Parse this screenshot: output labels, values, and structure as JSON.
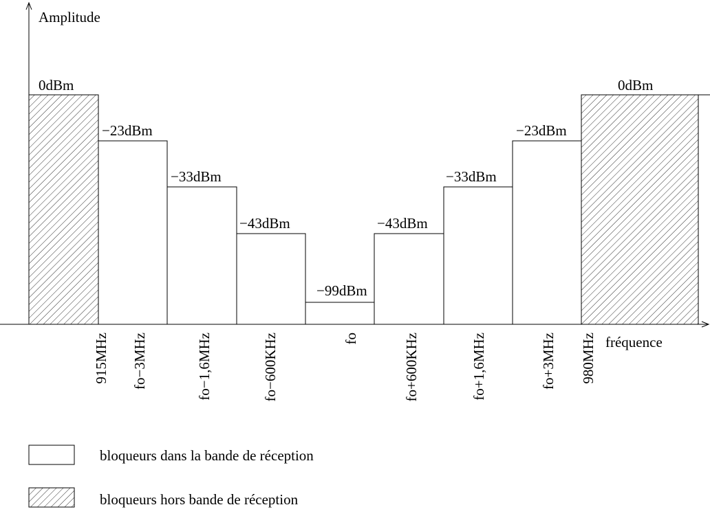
{
  "axes": {
    "y_label": "Amplitude",
    "x_label": "fréquence"
  },
  "levels": [
    "0dBm",
    "−23dBm",
    "−33dBm",
    "−43dBm",
    "−99dBm",
    "−43dBm",
    "−33dBm",
    "−23dBm",
    "0dBm"
  ],
  "frequencies": [
    "915MHz",
    "fo−3MHz",
    "fo−1,6MHz",
    "fo−600KHz",
    "fo",
    "fo+600KHz",
    "fo+1,6MHz",
    "fo+3MHz",
    "980MHz"
  ],
  "legend": [
    "bloqueurs dans la bande de réception",
    "bloqueurs hors bande de réception"
  ]
}
